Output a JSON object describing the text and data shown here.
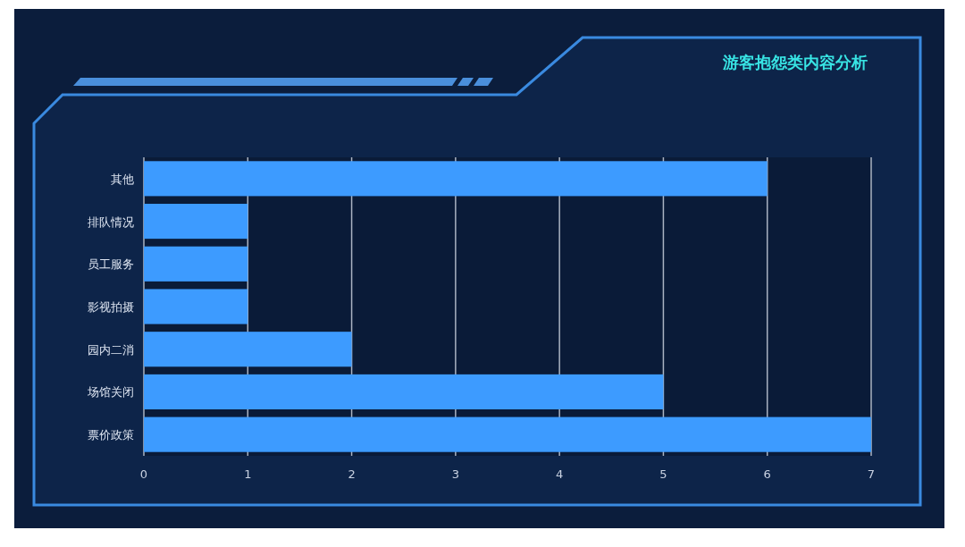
{
  "chart_data": {
    "type": "bar",
    "title": "游客抱怨类内容分析",
    "orientation": "horizontal",
    "categories": [
      "其他",
      "排队情况",
      "员工服务",
      "影视拍摄",
      "园内二消",
      "场馆关闭",
      "票价政策"
    ],
    "values": [
      6,
      1,
      1,
      1,
      2,
      5,
      7
    ],
    "color": "#3d9bff",
    "xlim": [
      0,
      7
    ],
    "xticks": [
      0,
      1,
      2,
      3,
      4,
      5,
      6,
      7
    ],
    "grid": "x"
  }
}
